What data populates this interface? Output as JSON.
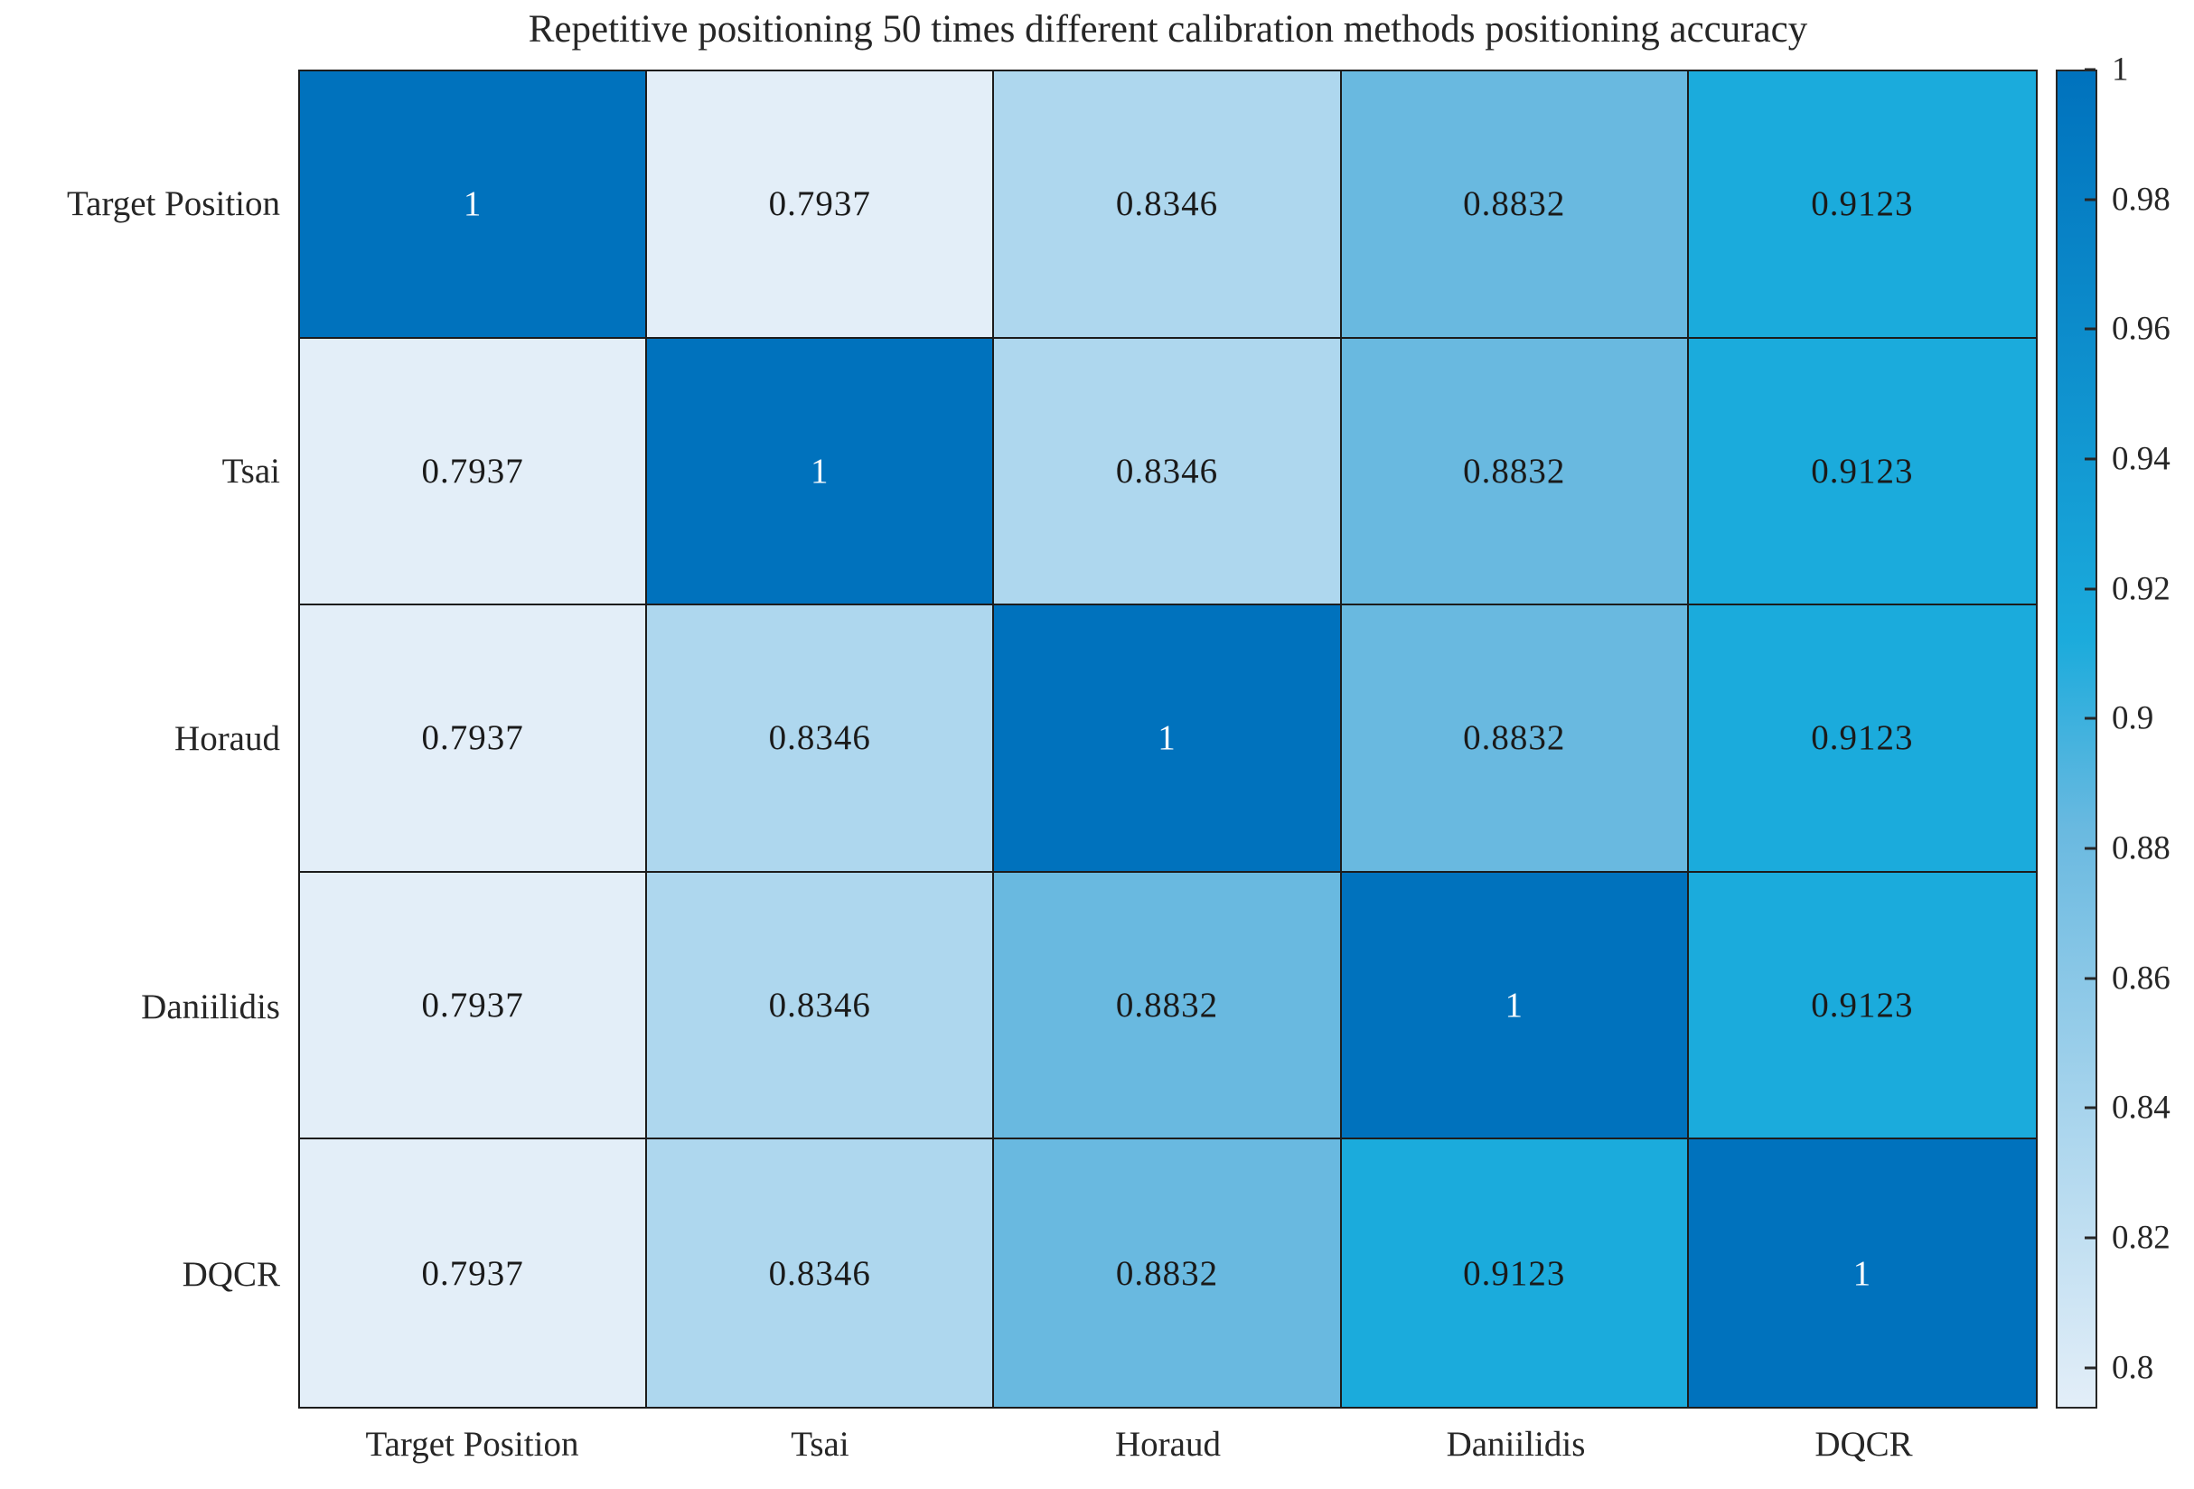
{
  "figure": {
    "background": "#ffffff"
  },
  "chart_data": {
    "type": "heatmap",
    "title": "Repetitive positioning 50 times different calibration methods positioning accuracy",
    "row_labels": [
      "Target Position",
      "Tsai",
      "Horaud",
      "Daniilidis",
      "DQCR"
    ],
    "col_labels": [
      "Target Position",
      "Tsai",
      "Horaud",
      "Daniilidis",
      "DQCR"
    ],
    "matrix": [
      [
        1.0,
        0.7937,
        0.8346,
        0.8832,
        0.9123
      ],
      [
        0.7937,
        1.0,
        0.8346,
        0.8832,
        0.9123
      ],
      [
        0.7937,
        0.8346,
        1.0,
        0.8832,
        0.9123
      ],
      [
        0.7937,
        0.8346,
        0.8832,
        1.0,
        0.9123
      ],
      [
        0.7937,
        0.8346,
        0.8832,
        0.9123,
        1.0
      ]
    ],
    "cell_labels": [
      [
        "1",
        "0.7937",
        "0.8346",
        "0.8832",
        "0.9123"
      ],
      [
        "0.7937",
        "1",
        "0.8346",
        "0.8832",
        "0.9123"
      ],
      [
        "0.7937",
        "0.8346",
        "1",
        "0.8832",
        "0.9123"
      ],
      [
        "0.7937",
        "0.8346",
        "0.8832",
        "1",
        "0.9123"
      ],
      [
        "0.7937",
        "0.8346",
        "0.8832",
        "0.9123",
        "1"
      ]
    ],
    "value_range": [
      0.7937,
      1.0
    ],
    "colorbar": {
      "position": "right",
      "ticks": [
        {
          "value": 1.0,
          "label": "1"
        },
        {
          "value": 0.98,
          "label": "0.98"
        },
        {
          "value": 0.96,
          "label": "0.96"
        },
        {
          "value": 0.94,
          "label": "0.94"
        },
        {
          "value": 0.92,
          "label": "0.92"
        },
        {
          "value": 0.9,
          "label": "0.9"
        },
        {
          "value": 0.88,
          "label": "0.88"
        },
        {
          "value": 0.86,
          "label": "0.86"
        },
        {
          "value": 0.84,
          "label": "0.84"
        },
        {
          "value": 0.82,
          "label": "0.82"
        },
        {
          "value": 0.8,
          "label": "0.8"
        }
      ]
    },
    "colormap_anchors": [
      {
        "value": 0.7937,
        "color": "#e3eef8"
      },
      {
        "value": 0.8346,
        "color": "#aed7ee"
      },
      {
        "value": 0.8832,
        "color": "#69b9e0"
      },
      {
        "value": 0.9123,
        "color": "#1babdc"
      },
      {
        "value": 1.0,
        "color": "#0072bd"
      }
    ],
    "colors": {
      "diagonal_text": "#ffffff",
      "cell_text": "#1a1a1a",
      "grid_line": "#1c1c1c",
      "axis_text": "#262626",
      "colorbar_border": "#262626"
    },
    "grid": true,
    "legend": false
  }
}
